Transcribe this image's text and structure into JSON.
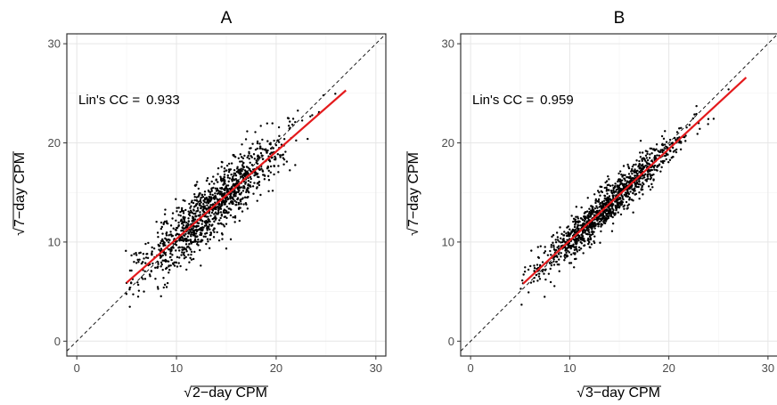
{
  "chart_data": [
    {
      "type": "scatter",
      "title": "A",
      "xlabel": "2−day CPM",
      "ylabel": "7−day CPM",
      "label_prefix": "√",
      "xlim": [
        -1,
        31
      ],
      "ylim": [
        -1.5,
        31
      ],
      "xticks": [
        0,
        10,
        20,
        30
      ],
      "yticks": [
        0,
        10,
        20,
        30
      ],
      "grid": true,
      "reference_line": {
        "slope": 1,
        "intercept": 0,
        "style": "dashed",
        "color": "#000000"
      },
      "fit_line": {
        "x": [
          5,
          27
        ],
        "y": [
          5.9,
          25.3
        ],
        "color": "#e41a1c"
      },
      "annotation": {
        "label": "Lin's CC =",
        "value": "0.933"
      },
      "scatter": {
        "n": 1200,
        "x_center": 13.5,
        "x_sd": 3.6,
        "x_min": 4.8,
        "x_max": 26.5,
        "resid_sd": 1.55,
        "point_color": "#000000",
        "seed": 11
      }
    },
    {
      "type": "scatter",
      "title": "B",
      "xlabel": "3−day CPM",
      "ylabel": "7−day CPM",
      "label_prefix": "√",
      "xlim": [
        -1,
        31
      ],
      "ylim": [
        -1.5,
        31
      ],
      "xticks": [
        0,
        10,
        20,
        30
      ],
      "yticks": [
        0,
        10,
        20,
        30
      ],
      "grid": true,
      "reference_line": {
        "slope": 1,
        "intercept": 0,
        "style": "dashed",
        "color": "#000000"
      },
      "fit_line": {
        "x": [
          5.3,
          27.8
        ],
        "y": [
          5.8,
          26.6
        ],
        "color": "#e41a1c"
      },
      "annotation": {
        "label": "Lin's CC =",
        "value": "0.959"
      },
      "scatter": {
        "n": 1200,
        "x_center": 13.7,
        "x_sd": 3.5,
        "x_min": 5.0,
        "x_max": 27.5,
        "resid_sd": 1.0,
        "point_color": "#000000",
        "seed": 29
      }
    }
  ]
}
